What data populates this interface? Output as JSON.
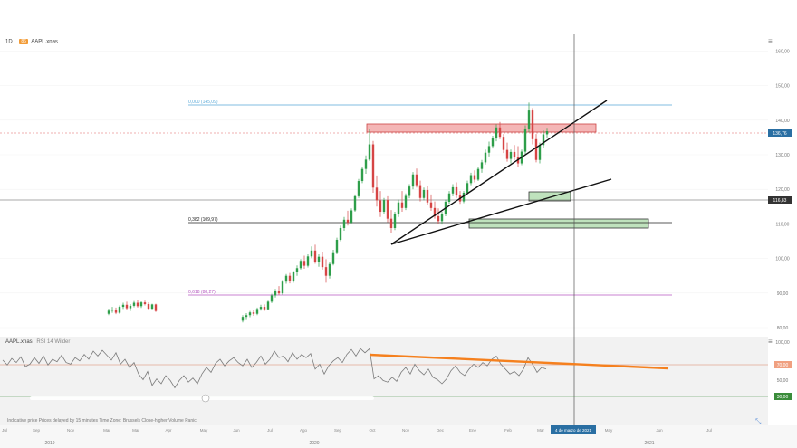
{
  "header": {
    "interval": "1D",
    "symbol": "AAPL.xnas",
    "symbol_tag": "86",
    "rsi_symbol": "AAPL.xnas",
    "rsi_label": "RSI 14 Wilder"
  },
  "colors": {
    "up": "#2e9e4a",
    "down": "#d64545",
    "rsi_line": "#7a7a7a",
    "fib_blue": "#59a9d8",
    "fib_black": "#222222",
    "fib_purple": "#b659c0",
    "trend": "#111111",
    "rsi_trend": "#f5801e",
    "red_zone": "#f4b6b6",
    "green_zone": "#bfe2bd",
    "cursor": "#555555"
  },
  "footer": {
    "note": "Indicative price  Prices delayed by 15 minutes  Time Zone: Brussels  Close-higher  Volume  Panic",
    "date_axis_top": [
      "Jul",
      "Sep",
      "Nov",
      "Mar",
      "Mar",
      "Apr",
      "May",
      "Jun",
      "Jul",
      "Ago",
      "Sep",
      "Oct",
      "Nov",
      "Dec",
      "Ene",
      "Feb",
      "Mar",
      "Abr",
      "May",
      "Jun",
      "Jul"
    ],
    "years": [
      "2019",
      "2020",
      "2021"
    ],
    "cursor_date": "4 de marzo de 2021"
  },
  "chart_data": {
    "type": "candlestick",
    "ylim": [
      75,
      160
    ],
    "y_ticks": [
      80,
      90,
      100,
      110,
      120,
      130,
      140,
      150,
      160
    ],
    "y_tick_labels": [
      "80,00",
      "90,00",
      "100,00",
      "110,00",
      "120,00",
      "130,00",
      "140,00",
      "150,00",
      "160,00"
    ],
    "last_price_label": "136,76",
    "last_price": 136.76,
    "crosshair_label": "116,83",
    "crosshair_price": 116.83,
    "fib_levels": [
      {
        "label": "0,000 (145,09)",
        "price": 145.09,
        "color": "#59a9d8"
      },
      {
        "label": "0,382 (109,97)",
        "price": 109.97,
        "color": "#222222"
      },
      {
        "label": "0,618 (88,27)",
        "price": 88.27,
        "color": "#b659c0"
      }
    ],
    "rsi": {
      "ylim": [
        0,
        100
      ],
      "ticks": [
        50,
        100
      ],
      "tick_labels": [
        "50,00",
        "100,00"
      ],
      "upper_label": "70,00",
      "lower_label": "30,00",
      "upper": 70,
      "lower": 30
    },
    "candles": [
      [
        120,
        84.0,
        85.5,
        83.6,
        84.9
      ],
      [
        124,
        84.9,
        86.0,
        84.3,
        85.2
      ],
      [
        128,
        85.2,
        85.8,
        83.9,
        84.3
      ],
      [
        132,
        84.3,
        86.4,
        84.0,
        86.0
      ],
      [
        136,
        86.0,
        87.2,
        85.4,
        86.6
      ],
      [
        140,
        86.6,
        87.5,
        85.1,
        85.6
      ],
      [
        144,
        85.6,
        86.8,
        84.8,
        86.3
      ],
      [
        148,
        86.3,
        87.7,
        85.9,
        87.2
      ],
      [
        152,
        87.2,
        87.9,
        85.8,
        86.2
      ],
      [
        156,
        86.2,
        87.6,
        85.7,
        87.3
      ],
      [
        160,
        87.3,
        87.8,
        86.4,
        86.8
      ],
      [
        164,
        86.8,
        87.3,
        85.2,
        85.5
      ],
      [
        168,
        85.5,
        86.9,
        85.0,
        86.7
      ],
      [
        172,
        86.7,
        86.9,
        84.5,
        84.8
      ],
      [
        268,
        82.0,
        83.6,
        81.5,
        83.1
      ],
      [
        272,
        83.1,
        84.2,
        82.2,
        83.6
      ],
      [
        276,
        83.6,
        84.8,
        83.0,
        84.4
      ],
      [
        280,
        84.4,
        85.2,
        83.4,
        84.0
      ],
      [
        284,
        84.0,
        85.8,
        83.6,
        85.4
      ],
      [
        288,
        85.4,
        86.6,
        84.9,
        86.0
      ],
      [
        292,
        86.0,
        86.7,
        84.8,
        85.3
      ],
      [
        296,
        85.3,
        87.8,
        85.0,
        87.5
      ],
      [
        300,
        87.5,
        89.8,
        87.1,
        89.3
      ],
      [
        304,
        89.3,
        91.2,
        88.7,
        90.6
      ],
      [
        308,
        90.6,
        92.0,
        89.4,
        89.9
      ],
      [
        312,
        89.9,
        93.8,
        89.5,
        93.3
      ],
      [
        316,
        93.3,
        95.5,
        92.7,
        95.0
      ],
      [
        320,
        95.0,
        95.8,
        92.8,
        93.5
      ],
      [
        324,
        93.5,
        96.4,
        93.0,
        96.0
      ],
      [
        328,
        96.0,
        98.0,
        95.0,
        97.2
      ],
      [
        332,
        97.2,
        99.8,
        96.8,
        99.3
      ],
      [
        336,
        99.3,
        100.8,
        97.0,
        97.9
      ],
      [
        340,
        97.9,
        101.2,
        97.4,
        100.6
      ],
      [
        344,
        100.6,
        103.5,
        100.1,
        102.3
      ],
      [
        348,
        102.3,
        104.0,
        98.5,
        99.0
      ],
      [
        352,
        99.0,
        101.2,
        97.6,
        100.5
      ],
      [
        356,
        100.5,
        102.0,
        96.8,
        97.5
      ],
      [
        360,
        97.5,
        99.8,
        93.0,
        95.0
      ],
      [
        364,
        95.0,
        99.0,
        94.2,
        98.4
      ],
      [
        368,
        98.4,
        102.5,
        98.0,
        101.8
      ],
      [
        372,
        101.8,
        106.0,
        101.2,
        105.4
      ],
      [
        376,
        105.4,
        109.5,
        105.0,
        108.8
      ],
      [
        380,
        108.8,
        112.0,
        108.0,
        111.2
      ],
      [
        384,
        111.2,
        113.8,
        109.5,
        110.4
      ],
      [
        388,
        110.4,
        114.5,
        110.0,
        113.9
      ],
      [
        392,
        113.9,
        118.5,
        113.5,
        118.0
      ],
      [
        396,
        118.0,
        123.0,
        117.5,
        122.4
      ],
      [
        400,
        122.4,
        126.5,
        121.8,
        125.9
      ],
      [
        404,
        125.9,
        129.8,
        124.5,
        128.6
      ],
      [
        408,
        128.6,
        137.5,
        128.2,
        133.0
      ],
      [
        412,
        133.0,
        134.0,
        119.0,
        120.5
      ],
      [
        416,
        120.5,
        124.0,
        115.0,
        116.8
      ],
      [
        420,
        116.8,
        119.5,
        112.0,
        113.5
      ],
      [
        424,
        113.5,
        117.5,
        112.8,
        116.9
      ],
      [
        428,
        116.9,
        118.0,
        110.5,
        111.5
      ],
      [
        432,
        111.5,
        114.0,
        107.5,
        108.8
      ],
      [
        436,
        108.8,
        113.5,
        108.2,
        112.9
      ],
      [
        440,
        112.9,
        117.0,
        112.0,
        116.2
      ],
      [
        444,
        116.2,
        119.5,
        113.5,
        114.6
      ],
      [
        448,
        114.6,
        118.8,
        114.0,
        118.1
      ],
      [
        452,
        118.1,
        121.5,
        117.4,
        120.8
      ],
      [
        456,
        120.8,
        125.0,
        120.0,
        124.3
      ],
      [
        460,
        124.3,
        126.0,
        120.5,
        121.2
      ],
      [
        464,
        121.2,
        122.5,
        116.5,
        117.5
      ],
      [
        468,
        117.5,
        120.5,
        116.8,
        119.8
      ],
      [
        472,
        119.8,
        121.0,
        115.5,
        116.2
      ],
      [
        476,
        116.2,
        118.5,
        113.8,
        114.6
      ],
      [
        480,
        114.6,
        116.5,
        111.5,
        112.2
      ],
      [
        484,
        112.2,
        114.5,
        110.0,
        110.8
      ],
      [
        488,
        110.8,
        113.5,
        109.8,
        112.9
      ],
      [
        492,
        112.9,
        117.0,
        112.2,
        116.4
      ],
      [
        496,
        116.4,
        119.5,
        115.8,
        118.8
      ],
      [
        500,
        118.8,
        121.5,
        118.0,
        120.6
      ],
      [
        504,
        120.6,
        122.0,
        117.5,
        118.2
      ],
      [
        508,
        118.2,
        119.5,
        115.8,
        116.5
      ],
      [
        512,
        116.5,
        119.5,
        116.0,
        119.0
      ],
      [
        516,
        119.0,
        122.5,
        118.5,
        121.8
      ],
      [
        520,
        121.8,
        124.8,
        121.2,
        124.1
      ],
      [
        524,
        124.1,
        125.5,
        122.0,
        122.8
      ],
      [
        528,
        122.8,
        126.5,
        122.4,
        125.9
      ],
      [
        532,
        125.9,
        128.5,
        124.8,
        127.8
      ],
      [
        536,
        127.8,
        131.5,
        127.2,
        130.6
      ],
      [
        540,
        130.6,
        133.8,
        129.5,
        132.5
      ],
      [
        544,
        132.5,
        135.5,
        131.8,
        134.7
      ],
      [
        548,
        134.7,
        138.8,
        133.9,
        137.9
      ],
      [
        552,
        137.9,
        139.5,
        134.5,
        135.2
      ],
      [
        556,
        135.2,
        136.0,
        130.5,
        131.4
      ],
      [
        560,
        131.4,
        133.5,
        128.0,
        128.8
      ],
      [
        564,
        128.8,
        131.5,
        127.5,
        130.8
      ],
      [
        568,
        130.8,
        132.8,
        128.5,
        129.2
      ],
      [
        572,
        129.2,
        132.5,
        126.5,
        127.5
      ],
      [
        576,
        127.5,
        131.5,
        127.0,
        130.9
      ],
      [
        580,
        130.9,
        138.5,
        130.0,
        137.6
      ],
      [
        584,
        137.6,
        145.1,
        136.5,
        142.8
      ],
      [
        588,
        142.8,
        143.5,
        133.0,
        134.5
      ],
      [
        592,
        134.5,
        136.0,
        127.8,
        128.5
      ],
      [
        596,
        128.5,
        133.5,
        127.5,
        132.8
      ],
      [
        600,
        132.8,
        137.0,
        132.0,
        135.9
      ],
      [
        604,
        135.9,
        137.8,
        134.8,
        136.8
      ]
    ],
    "rsi_series": [
      [
        3,
        69
      ],
      [
        8,
        63
      ],
      [
        13,
        71
      ],
      [
        18,
        66
      ],
      [
        23,
        73
      ],
      [
        28,
        61
      ],
      [
        33,
        64
      ],
      [
        38,
        72
      ],
      [
        43,
        65
      ],
      [
        48,
        74
      ],
      [
        53,
        63
      ],
      [
        58,
        70
      ],
      [
        63,
        67
      ],
      [
        68,
        75
      ],
      [
        73,
        66
      ],
      [
        78,
        64
      ],
      [
        83,
        72
      ],
      [
        88,
        68
      ],
      [
        93,
        76
      ],
      [
        98,
        70
      ],
      [
        103,
        80
      ],
      [
        108,
        74
      ],
      [
        113,
        81
      ],
      [
        118,
        75
      ],
      [
        123,
        69
      ],
      [
        128,
        78
      ],
      [
        133,
        64
      ],
      [
        138,
        70
      ],
      [
        143,
        60
      ],
      [
        148,
        66
      ],
      [
        153,
        52
      ],
      [
        158,
        45
      ],
      [
        163,
        55
      ],
      [
        168,
        38
      ],
      [
        173,
        46
      ],
      [
        178,
        40
      ],
      [
        183,
        50
      ],
      [
        188,
        44
      ],
      [
        193,
        35
      ],
      [
        198,
        44
      ],
      [
        203,
        50
      ],
      [
        208,
        42
      ],
      [
        213,
        47
      ],
      [
        218,
        40
      ],
      [
        223,
        52
      ],
      [
        228,
        60
      ],
      [
        233,
        54
      ],
      [
        238,
        65
      ],
      [
        243,
        70
      ],
      [
        248,
        62
      ],
      [
        253,
        68
      ],
      [
        258,
        72
      ],
      [
        263,
        66
      ],
      [
        268,
        62
      ],
      [
        273,
        70
      ],
      [
        278,
        60
      ],
      [
        283,
        66
      ],
      [
        288,
        74
      ],
      [
        293,
        64
      ],
      [
        298,
        70
      ],
      [
        303,
        80
      ],
      [
        308,
        72
      ],
      [
        313,
        74
      ],
      [
        318,
        67
      ],
      [
        323,
        78
      ],
      [
        328,
        70
      ],
      [
        333,
        76
      ],
      [
        338,
        72
      ],
      [
        343,
        77
      ],
      [
        348,
        58
      ],
      [
        353,
        64
      ],
      [
        358,
        52
      ],
      [
        363,
        62
      ],
      [
        368,
        68
      ],
      [
        373,
        72
      ],
      [
        378,
        66
      ],
      [
        383,
        76
      ],
      [
        388,
        82
      ],
      [
        393,
        74
      ],
      [
        398,
        83
      ],
      [
        403,
        78
      ],
      [
        408,
        83
      ],
      [
        413,
        46
      ],
      [
        418,
        50
      ],
      [
        423,
        44
      ],
      [
        428,
        42
      ],
      [
        433,
        48
      ],
      [
        438,
        43
      ],
      [
        443,
        54
      ],
      [
        448,
        60
      ],
      [
        453,
        52
      ],
      [
        458,
        64
      ],
      [
        463,
        56
      ],
      [
        468,
        51
      ],
      [
        473,
        58
      ],
      [
        478,
        48
      ],
      [
        483,
        45
      ],
      [
        488,
        40
      ],
      [
        493,
        46
      ],
      [
        498,
        56
      ],
      [
        503,
        62
      ],
      [
        508,
        54
      ],
      [
        513,
        50
      ],
      [
        518,
        58
      ],
      [
        523,
        64
      ],
      [
        528,
        60
      ],
      [
        533,
        66
      ],
      [
        538,
        62
      ],
      [
        543,
        70
      ],
      [
        548,
        74
      ],
      [
        553,
        64
      ],
      [
        558,
        58
      ],
      [
        563,
        52
      ],
      [
        568,
        55
      ],
      [
        573,
        50
      ],
      [
        578,
        58
      ],
      [
        583,
        72
      ],
      [
        588,
        64
      ],
      [
        593,
        54
      ],
      [
        598,
        60
      ],
      [
        603,
        58
      ]
    ]
  }
}
